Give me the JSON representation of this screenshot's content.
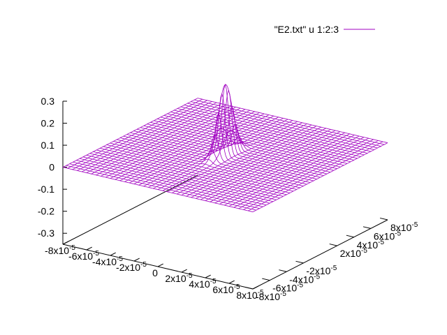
{
  "chart_data": {
    "type": "surface",
    "series": [
      {
        "name": "\"E2.txt\" u 1:2:3",
        "color": "#a000c0"
      }
    ],
    "legend_position": "top-right",
    "grid": false,
    "x": {
      "range": [
        -8e-05,
        8e-05
      ],
      "ticks": [
        {
          "v": -8e-05,
          "m": "-8x10",
          "e": "-5"
        },
        {
          "v": -6e-05,
          "m": "-6x10",
          "e": "-5"
        },
        {
          "v": -4e-05,
          "m": "-4x10",
          "e": "-5"
        },
        {
          "v": -2e-05,
          "m": "-2x10",
          "e": "-5"
        },
        {
          "v": 0,
          "m": "0",
          "e": ""
        },
        {
          "v": 2e-05,
          "m": "2x10",
          "e": "-5"
        },
        {
          "v": 4e-05,
          "m": "4x10",
          "e": "-5"
        },
        {
          "v": 6e-05,
          "m": "6x10",
          "e": "-5"
        },
        {
          "v": 8e-05,
          "m": "8x10",
          "e": "-5"
        }
      ]
    },
    "y": {
      "range": [
        -8e-05,
        8e-05
      ],
      "ticks": [
        {
          "v": -8e-05,
          "m": "-8x10",
          "e": "-5"
        },
        {
          "v": -6e-05,
          "m": "-6x10",
          "e": "-5"
        },
        {
          "v": -4e-05,
          "m": "-4x10",
          "e": "-5"
        },
        {
          "v": -2e-05,
          "m": "-2x10",
          "e": "-5"
        },
        {
          "v": 2e-05,
          "m": "2x10",
          "e": "-5"
        },
        {
          "v": 4e-05,
          "m": "4x10",
          "e": "-5"
        },
        {
          "v": 6e-05,
          "m": "6x10",
          "e": "-5"
        },
        {
          "v": 8e-05,
          "m": "8x10",
          "e": "-5"
        }
      ]
    },
    "z": {
      "range": [
        -0.35,
        0.3
      ],
      "ticks": [
        {
          "v": 0.3,
          "label": "0.3"
        },
        {
          "v": 0.2,
          "label": "0.2"
        },
        {
          "v": 0.1,
          "label": "0.1"
        },
        {
          "v": 0,
          "label": "0"
        },
        {
          "v": -0.1,
          "label": "-0.1"
        },
        {
          "v": -0.2,
          "label": "-0.2"
        },
        {
          "v": -0.3,
          "label": "-0.3"
        }
      ]
    },
    "grid_size": [
      40,
      40
    ],
    "peak": {
      "x": 0.0,
      "y": 0.0,
      "amplitude": 0.32,
      "width_x": 4e-06,
      "width_y": 1.2e-05
    }
  }
}
